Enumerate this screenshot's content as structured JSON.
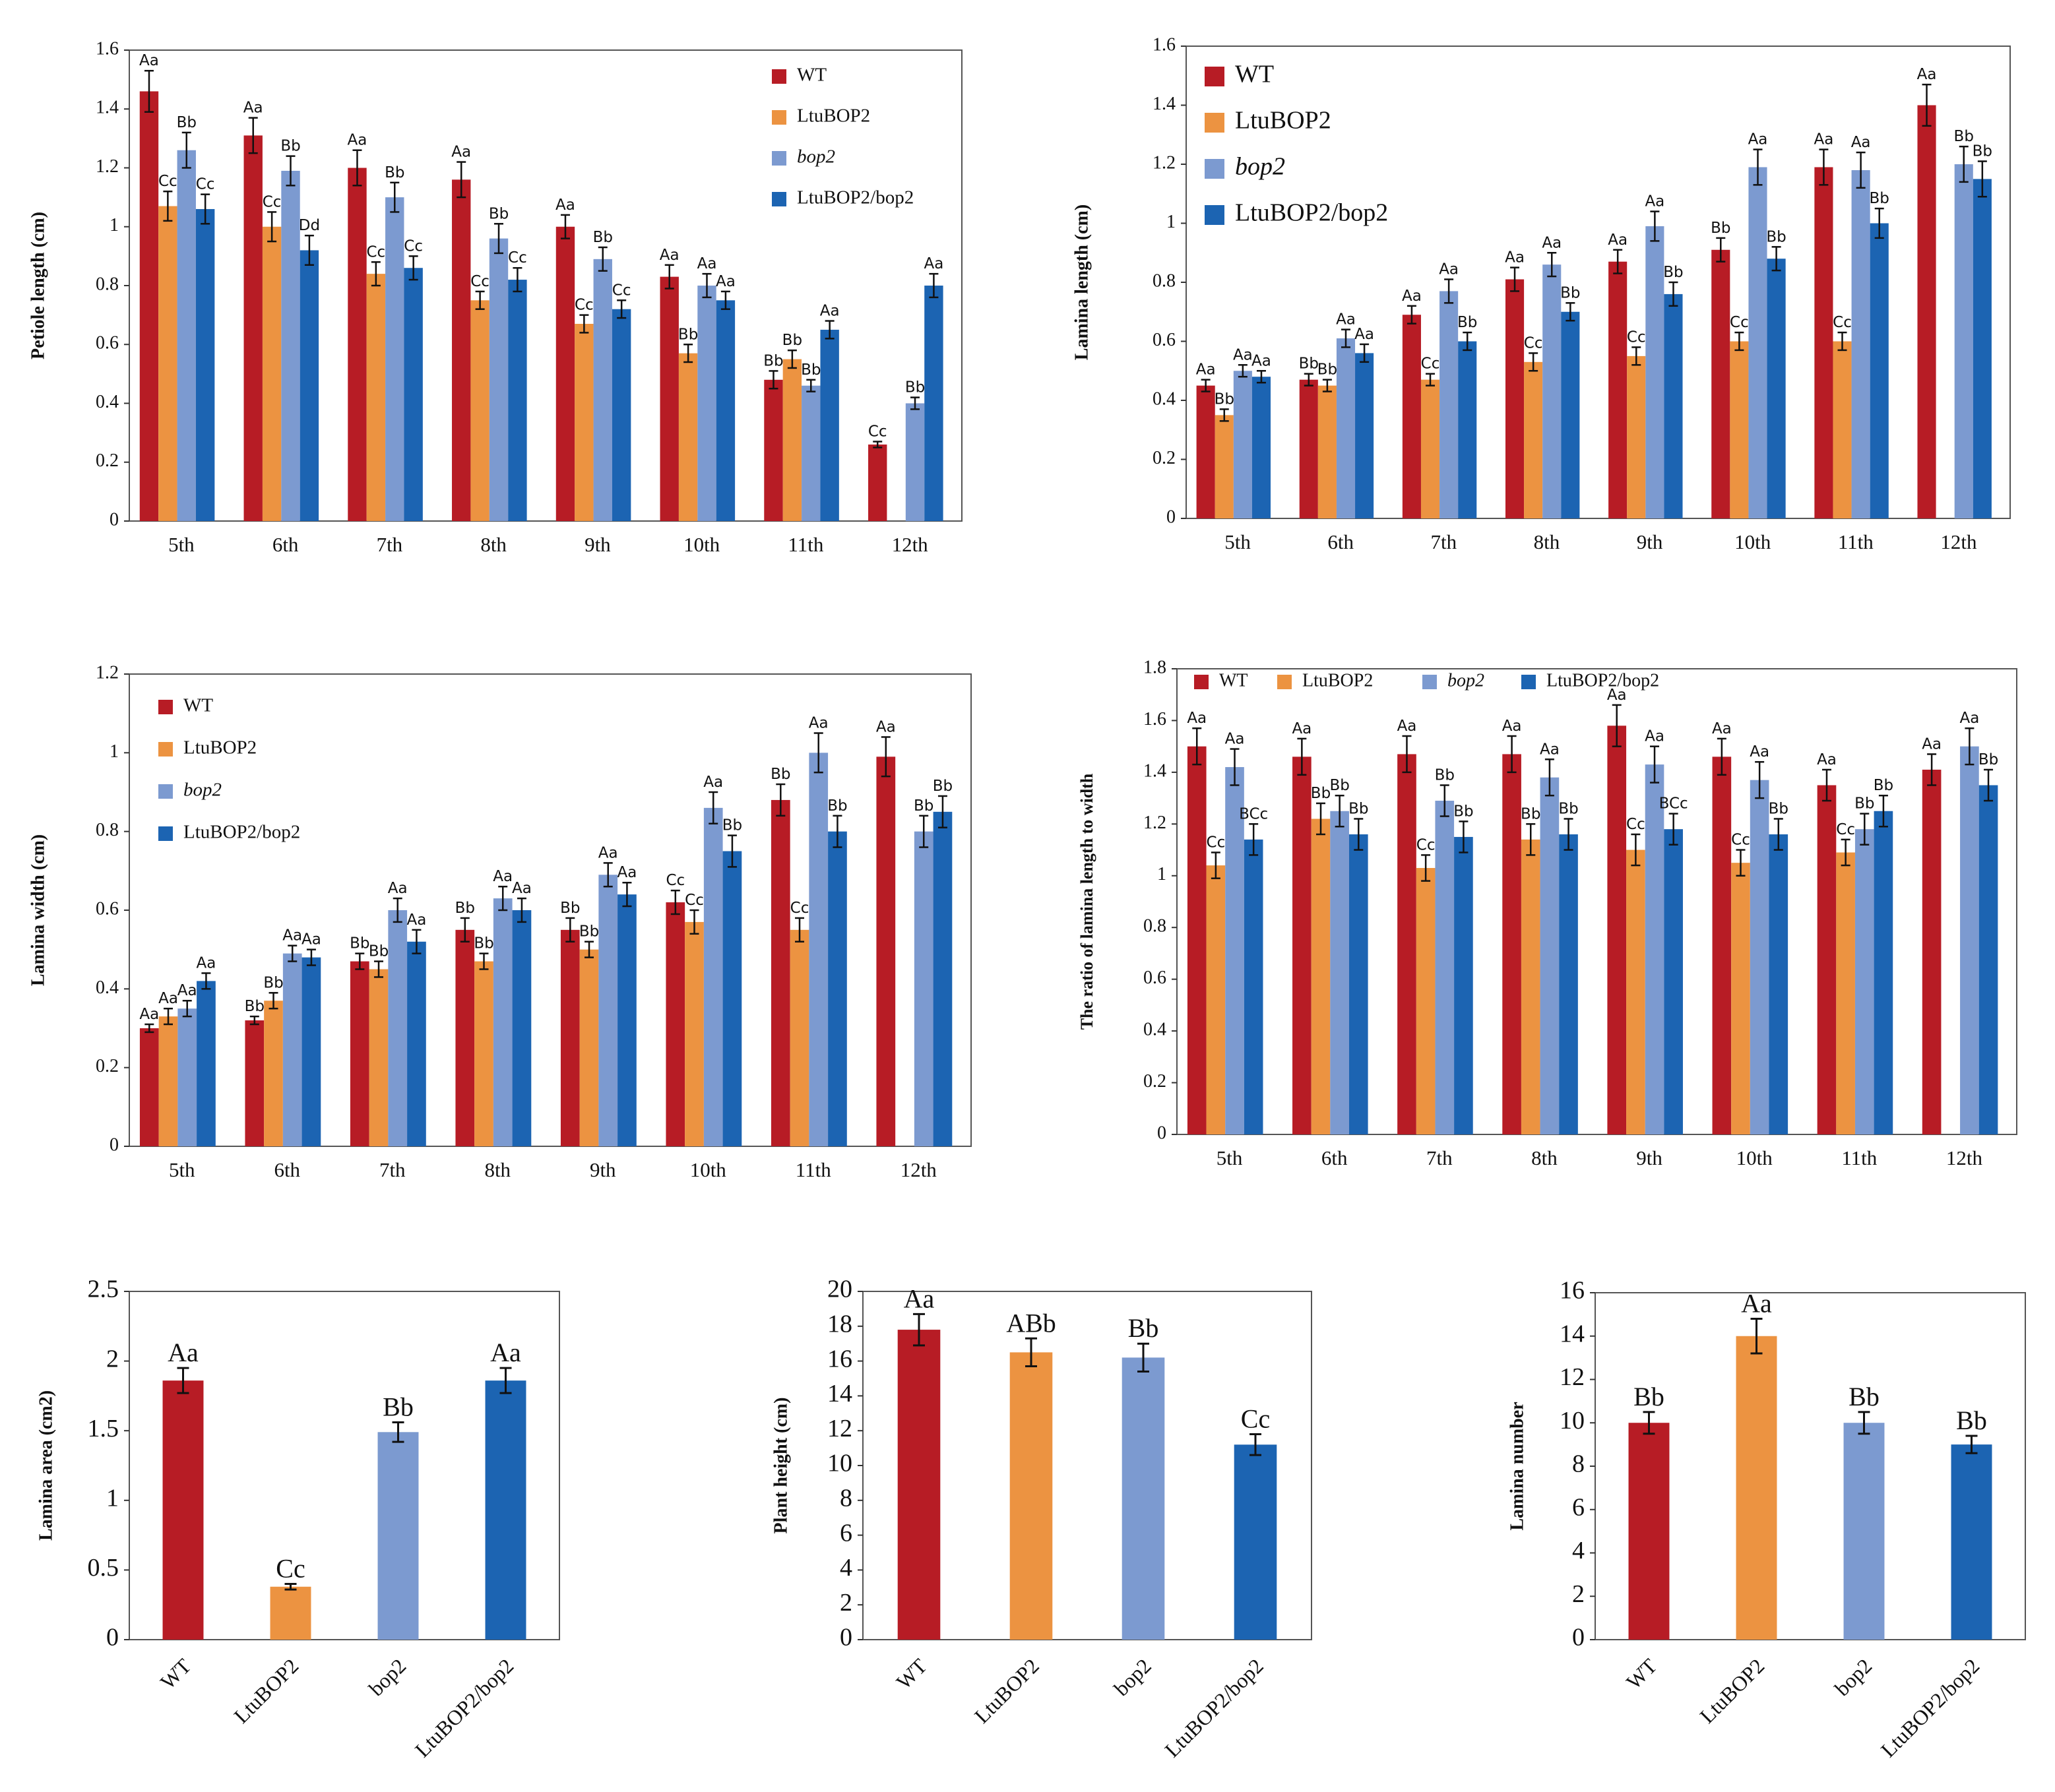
{
  "colors": {
    "WT": "#b71c25",
    "LtuBOP2": "#ec9341",
    "bop2": "#7c9ad0",
    "LtuBOP2/bop2": "#1c64b2"
  },
  "chart_data": [
    {
      "id": "petiole",
      "type": "bar",
      "ylabel": "Petiole length (cm)",
      "ylim": [
        0,
        1.6
      ],
      "ticks": [
        "0",
        "0.2",
        "0.4",
        "0.6",
        "0.8",
        "1",
        "1.2",
        "1.4",
        "1.6"
      ],
      "categories": [
        "5th",
        "6th",
        "7th",
        "8th",
        "9th",
        "10th",
        "11th",
        "12th"
      ],
      "legend_position": "top-right",
      "series": [
        {
          "name": "WT",
          "legend": "WT",
          "italic": false,
          "values": [
            1.46,
            1.31,
            1.2,
            1.16,
            1.0,
            0.83,
            0.48,
            0.26
          ],
          "errors": [
            0.07,
            0.06,
            0.06,
            0.06,
            0.04,
            0.04,
            0.03,
            0.01
          ],
          "labels": [
            "Aa",
            "Aa",
            "Aa",
            "Aa",
            "Aa",
            "Aa",
            "Bb",
            "Cc"
          ]
        },
        {
          "name": "LtuBOP2",
          "legend": "LtuBOP2",
          "italic": false,
          "values": [
            1.07,
            1.0,
            0.84,
            0.75,
            0.67,
            0.57,
            0.55,
            null
          ],
          "errors": [
            0.05,
            0.05,
            0.04,
            0.03,
            0.03,
            0.03,
            0.03,
            null
          ],
          "labels": [
            "Cc",
            "Cc",
            "Cc",
            "Cc",
            "Cc",
            "Bb",
            "Bb",
            ""
          ]
        },
        {
          "name": "bop2",
          "legend": "bop2",
          "italic": true,
          "values": [
            1.26,
            1.19,
            1.1,
            0.96,
            0.89,
            0.8,
            0.46,
            0.4
          ],
          "errors": [
            0.06,
            0.05,
            0.05,
            0.05,
            0.04,
            0.04,
            0.02,
            0.02
          ],
          "labels": [
            "Bb",
            "Bb",
            "Bb",
            "Bb",
            "Bb",
            "Aa",
            "Bb",
            "Bb"
          ]
        },
        {
          "name": "LtuBOP2/bop2",
          "legend": "LtuBOP2/bop2",
          "italic": false,
          "values": [
            1.06,
            0.92,
            0.86,
            0.82,
            0.72,
            0.75,
            0.65,
            0.8
          ],
          "errors": [
            0.05,
            0.05,
            0.04,
            0.04,
            0.03,
            0.03,
            0.03,
            0.04
          ],
          "labels": [
            "Cc",
            "Dd",
            "Cc",
            "Cc",
            "Cc",
            "Aa",
            "Aa",
            "Aa"
          ]
        }
      ]
    },
    {
      "id": "lamina-length",
      "type": "bar",
      "ylabel": "Lamina length (cm)",
      "ylim": [
        0,
        1.6
      ],
      "ticks": [
        "0",
        "0.2",
        "0.4",
        "0.6",
        "0.8",
        "1",
        "1.2",
        "1.4",
        "1.6"
      ],
      "categories": [
        "5th",
        "6th",
        "7th",
        "8th",
        "9th",
        "10th",
        "11th",
        "12th"
      ],
      "legend_position": "top-left",
      "series": [
        {
          "name": "WT",
          "legend": "WT",
          "italic": false,
          "values": [
            0.45,
            0.47,
            0.69,
            0.81,
            0.87,
            0.91,
            1.19,
            1.4
          ],
          "errors": [
            0.02,
            0.02,
            0.03,
            0.04,
            0.04,
            0.04,
            0.06,
            0.07
          ],
          "labels": [
            "Aa",
            "Bb",
            "Aa",
            "Aa",
            "Aa",
            "Bb",
            "Aa",
            "Aa"
          ]
        },
        {
          "name": "LtuBOP2",
          "legend": "LtuBOP2",
          "italic": false,
          "values": [
            0.35,
            0.45,
            0.47,
            0.53,
            0.55,
            0.6,
            0.6,
            null
          ],
          "errors": [
            0.02,
            0.02,
            0.02,
            0.03,
            0.03,
            0.03,
            0.03,
            null
          ],
          "labels": [
            "Bb",
            "Bb",
            "Cc",
            "Cc",
            "Cc",
            "Cc",
            "Cc",
            ""
          ]
        },
        {
          "name": "bop2",
          "legend": "bop2",
          "italic": true,
          "values": [
            0.5,
            0.61,
            0.77,
            0.86,
            0.99,
            1.19,
            1.18,
            1.2
          ],
          "errors": [
            0.02,
            0.03,
            0.04,
            0.04,
            0.05,
            0.06,
            0.06,
            0.06
          ],
          "labels": [
            "Aa",
            "Aa",
            "Aa",
            "Aa",
            "Aa",
            "Aa",
            "Aa",
            "Bb"
          ]
        },
        {
          "name": "LtuBOP2/bop2",
          "legend": "LtuBOP2/bop2",
          "italic": false,
          "values": [
            0.48,
            0.56,
            0.6,
            0.7,
            0.76,
            0.88,
            1.0,
            1.15
          ],
          "errors": [
            0.02,
            0.03,
            0.03,
            0.03,
            0.04,
            0.04,
            0.05,
            0.06
          ],
          "labels": [
            "Aa",
            "Aa",
            "Bb",
            "Bb",
            "Bb",
            "Bb",
            "Bb",
            "Bb"
          ]
        }
      ]
    },
    {
      "id": "lamina-width",
      "type": "bar",
      "ylabel": "Lamina width (cm)",
      "ylim": [
        0,
        1.2
      ],
      "ticks": [
        "0",
        "0.2",
        "0.4",
        "0.6",
        "0.8",
        "1",
        "1.2"
      ],
      "categories": [
        "5th",
        "6th",
        "7th",
        "8th",
        "9th",
        "10th",
        "11th",
        "12th"
      ],
      "legend_position": "top-left",
      "series": [
        {
          "name": "WT",
          "legend": "WT",
          "italic": false,
          "values": [
            0.3,
            0.32,
            0.47,
            0.55,
            0.55,
            0.62,
            0.88,
            0.99
          ],
          "errors": [
            0.01,
            0.01,
            0.02,
            0.03,
            0.03,
            0.03,
            0.04,
            0.05
          ],
          "labels": [
            "Aa",
            "Bb",
            "Bb",
            "Bb",
            "Bb",
            "Cc",
            "Bb",
            "Aa"
          ]
        },
        {
          "name": "LtuBOP2",
          "legend": "LtuBOP2",
          "italic": false,
          "values": [
            0.33,
            0.37,
            0.45,
            0.47,
            0.5,
            0.57,
            0.55,
            null
          ],
          "errors": [
            0.02,
            0.02,
            0.02,
            0.02,
            0.02,
            0.03,
            0.03,
            null
          ],
          "labels": [
            "Aa",
            "Bb",
            "Bb",
            "Bb",
            "Bb",
            "Cc",
            "Cc",
            ""
          ]
        },
        {
          "name": "bop2",
          "legend": "bop2",
          "italic": true,
          "values": [
            0.35,
            0.49,
            0.6,
            0.63,
            0.69,
            0.86,
            1.0,
            0.8
          ],
          "errors": [
            0.02,
            0.02,
            0.03,
            0.03,
            0.03,
            0.04,
            0.05,
            0.04
          ],
          "labels": [
            "Aa",
            "Aa",
            "Aa",
            "Aa",
            "Aa",
            "Aa",
            "Aa",
            "Bb"
          ]
        },
        {
          "name": "LtuBOP2/bop2",
          "legend": "LtuBOP2/bop2",
          "italic": false,
          "values": [
            0.42,
            0.48,
            0.52,
            0.6,
            0.64,
            0.75,
            0.8,
            0.85
          ],
          "errors": [
            0.02,
            0.02,
            0.03,
            0.03,
            0.03,
            0.04,
            0.04,
            0.04
          ],
          "labels": [
            "Aa",
            "Aa",
            "Aa",
            "Aa",
            "Aa",
            "Bb",
            "Bb",
            "Bb"
          ]
        }
      ]
    },
    {
      "id": "ratio",
      "type": "bar",
      "ylabel": "The ratio of lamina length to width",
      "ylim": [
        0,
        1.8
      ],
      "ticks": [
        "0",
        "0.2",
        "0.4",
        "0.6",
        "0.8",
        "1",
        "1.2",
        "1.4",
        "1.6",
        "1.8"
      ],
      "categories": [
        "5th",
        "6th",
        "7th",
        "8th",
        "9th",
        "10th",
        "11th",
        "12th"
      ],
      "legend_position": "top-horizontal",
      "series": [
        {
          "name": "WT",
          "legend": "WT",
          "italic": false,
          "values": [
            1.5,
            1.46,
            1.47,
            1.47,
            1.58,
            1.46,
            1.35,
            1.41
          ],
          "errors": [
            0.07,
            0.07,
            0.07,
            0.07,
            0.08,
            0.07,
            0.06,
            0.06
          ],
          "labels": [
            "Aa",
            "Aa",
            "Aa",
            "Aa",
            "Aa",
            "Aa",
            "Aa",
            "Aa"
          ]
        },
        {
          "name": "LtuBOP2",
          "legend": "LtuBOP2",
          "italic": false,
          "values": [
            1.04,
            1.22,
            1.03,
            1.14,
            1.1,
            1.05,
            1.09,
            null
          ],
          "errors": [
            0.05,
            0.06,
            0.05,
            0.06,
            0.06,
            0.05,
            0.05,
            null
          ],
          "labels": [
            "Cc",
            "Bb",
            "Cc",
            "Bb",
            "Cc",
            "Cc",
            "Cc",
            ""
          ]
        },
        {
          "name": "bop2",
          "legend": "bop2",
          "italic": true,
          "values": [
            1.42,
            1.25,
            1.29,
            1.38,
            1.43,
            1.37,
            1.18,
            1.5
          ],
          "errors": [
            0.07,
            0.06,
            0.06,
            0.07,
            0.07,
            0.07,
            0.06,
            0.07
          ],
          "labels": [
            "Aa",
            "Bb",
            "Bb",
            "Aa",
            "Aa",
            "Aa",
            "Bb",
            "Aa"
          ]
        },
        {
          "name": "LtuBOP2/bop2",
          "legend": "LtuBOP2/bop2",
          "italic": false,
          "values": [
            1.14,
            1.16,
            1.15,
            1.16,
            1.18,
            1.16,
            1.25,
            1.35
          ],
          "errors": [
            0.06,
            0.06,
            0.06,
            0.06,
            0.06,
            0.06,
            0.06,
            0.06
          ],
          "labels": [
            "BCc",
            "Bb",
            "Bb",
            "Bb",
            "BCc",
            "Bb",
            "Bb",
            "Bb"
          ]
        }
      ]
    },
    {
      "id": "lamina-area",
      "type": "bar",
      "ylabel": "Lamina  area (cm2)",
      "ylim": [
        0,
        2.5
      ],
      "ticks": [
        "0",
        "0.5",
        "1",
        "1.5",
        "2",
        "2.5"
      ],
      "categories": [
        "WT",
        "LtuBOP2",
        "bop2",
        "LtuBOP2/bop2"
      ],
      "values": [
        1.86,
        0.38,
        1.49,
        1.86
      ],
      "errors": [
        0.09,
        0.02,
        0.07,
        0.09
      ],
      "labels": [
        "Aa",
        "Cc",
        "Bb",
        "Aa"
      ]
    },
    {
      "id": "plant-height",
      "type": "bar",
      "ylabel": "Plant  height (cm)",
      "ylim": [
        0,
        20
      ],
      "ticks": [
        "0",
        "2",
        "4",
        "6",
        "8",
        "10",
        "12",
        "14",
        "16",
        "18",
        "20"
      ],
      "categories": [
        "WT",
        "LtuBOP2",
        "bop2",
        "LtuBOP2/bop2"
      ],
      "values": [
        17.8,
        16.5,
        16.2,
        11.2
      ],
      "errors": [
        0.9,
        0.8,
        0.8,
        0.6
      ],
      "labels": [
        "Aa",
        "ABb",
        "Bb",
        "Cc"
      ]
    },
    {
      "id": "lamina-number",
      "type": "bar",
      "ylabel": "Lamina  number",
      "ylim": [
        0,
        16
      ],
      "ticks": [
        "0",
        "2",
        "4",
        "6",
        "8",
        "10",
        "12",
        "14",
        "16"
      ],
      "categories": [
        "WT",
        "LtuBOP2",
        "bop2",
        "LtuBOP2/bop2"
      ],
      "values": [
        10,
        14,
        10,
        9
      ],
      "errors": [
        0.5,
        0.8,
        0.5,
        0.4
      ],
      "labels": [
        "Bb",
        "Aa",
        "Bb",
        "Bb"
      ]
    }
  ]
}
